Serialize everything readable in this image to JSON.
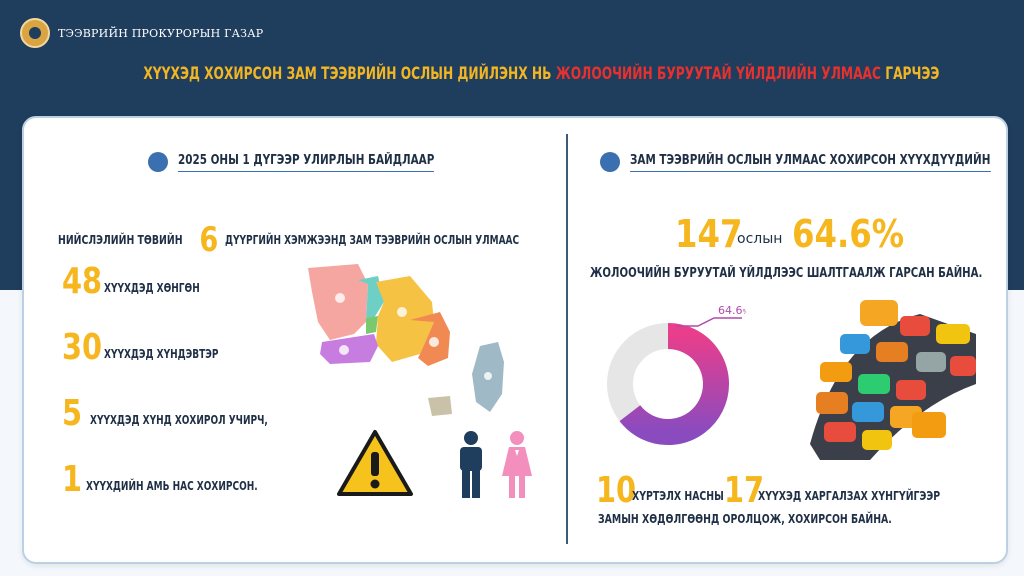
{
  "header": {
    "org_name": "ТЭЭВРИЙН ПРОКУРОРЫН ГАЗАР"
  },
  "title": {
    "part1": "ХҮҮХЭД ХОХИРСОН ЗАМ ТЭЭВРИЙН ОСЛЫН ДИЙЛЭНХ НЬ ",
    "part2": "ЖОЛООЧИЙН БУРУУТАЙ ҮЙЛДЛИЙН УЛМААС",
    "part3": " ГАРЧЭЭ"
  },
  "left": {
    "section_title": "2025 ОНЫ 1 ДҮГЭЭР УЛИРЛЫН БАЙДЛААР",
    "intro_before": "НИЙСЛЭЛИЙН ТӨВИЙН",
    "districts_count": "6",
    "intro_after": "ДҮҮРГИЙН ХЭМЖЭЭНД ЗАМ ТЭЭВРИЙН ОСЛЫН УЛМААС",
    "stats": [
      {
        "value": "48",
        "label": "ХҮҮХДЭД ХӨНГӨН"
      },
      {
        "value": "30",
        "label": "ХҮҮХДЭД ХҮНДЭВТЭР"
      },
      {
        "value": "5",
        "label": "ХҮҮХДЭД ХҮНД ХОХИРОЛ УЧИРЧ,"
      },
      {
        "value": "1",
        "label": "ХҮҮХДИЙН АМЬ НАС ХОХИРСОН."
      }
    ]
  },
  "right": {
    "section_title": "ЗАМ ТЭЭВРИЙН ОСЛЫН УЛМААС ХОХИРСОН ХҮҮХДҮҮДИЙН",
    "accidents": "147",
    "accidents_word": "ослын",
    "percent": "64.6%",
    "cause_text": "ЖОЛООЧИЙН БУРУУТАЙ ҮЙЛДЛЭЭС ШАЛТГААЛЖ ГАРСАН БАЙНА.",
    "donut_label": "64.6",
    "donut_label_unit": "%",
    "donut_fraction": 0.646,
    "age_limit": "10",
    "age_text": "ХҮРТЭЛХ НАСНЫ",
    "children_count": "17",
    "children_text": "ХҮҮХЭД ХАРГАЛЗАХ ХҮНГҮЙГЭЭР",
    "closing_text": "ЗАМЫН ХӨДӨЛГӨӨНД ОРОЛЦОЖ, ХОХИРСОН БАЙНА."
  },
  "colors": {
    "navy": "#1f3d5c",
    "accent_yellow": "#f5b61e",
    "accent_red": "#e8312e",
    "donut_pink": "#e83e8c",
    "donut_purple": "#8a4bbf",
    "donut_gray": "#e6e6e6"
  }
}
